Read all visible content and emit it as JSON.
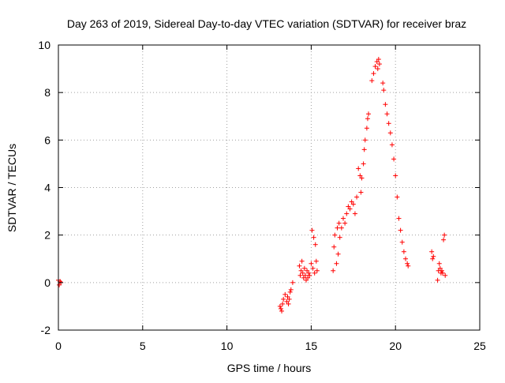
{
  "chart_data": {
    "type": "scatter",
    "title": "Day 263 of 2019, Sidereal Day-to-day VTEC variation (SDTVAR) for receiver braz",
    "xlabel": "GPS time / hours",
    "ylabel": "SDTVAR / TECUs",
    "xlim": [
      0,
      25
    ],
    "ylim": [
      -2,
      10
    ],
    "xticks": [
      0,
      5,
      10,
      15,
      20,
      25
    ],
    "yticks": [
      -2,
      0,
      2,
      4,
      6,
      8,
      10
    ],
    "xtick_labels": [
      "0",
      "5",
      "10",
      "15",
      "20",
      "25"
    ],
    "ytick_labels": [
      "-2",
      "0",
      "2",
      "4",
      "6",
      "8",
      "10"
    ],
    "grid": true,
    "marker": "+",
    "color": "#ff0000",
    "series": [
      {
        "name": "SDTVAR",
        "x": [
          0.0,
          0.05,
          0.1,
          0.15,
          13.15,
          13.2,
          13.25,
          13.3,
          13.35,
          13.45,
          13.55,
          13.6,
          13.65,
          13.7,
          13.75,
          13.8,
          13.9,
          14.3,
          14.35,
          14.4,
          14.45,
          14.5,
          14.55,
          14.6,
          14.65,
          14.7,
          14.75,
          14.8,
          14.85,
          14.9,
          15.0,
          15.05,
          15.1,
          15.15,
          15.2,
          15.25,
          15.3,
          15.35,
          16.3,
          16.35,
          16.4,
          16.5,
          16.55,
          16.6,
          16.65,
          16.7,
          16.8,
          16.9,
          17.0,
          17.1,
          17.2,
          17.3,
          17.4,
          17.5,
          17.6,
          17.7,
          17.8,
          17.9,
          17.95,
          18.0,
          18.1,
          18.15,
          18.2,
          18.3,
          18.35,
          18.4,
          18.6,
          18.7,
          18.8,
          18.9,
          18.95,
          19.0,
          19.05,
          19.25,
          19.3,
          19.4,
          19.5,
          19.6,
          19.7,
          19.8,
          19.9,
          20.0,
          20.1,
          20.2,
          20.3,
          20.4,
          20.5,
          20.6,
          20.7,
          20.75,
          22.15,
          22.2,
          22.25,
          22.5,
          22.55,
          22.6,
          22.65,
          22.7,
          22.75,
          22.8,
          22.85,
          22.9,
          22.95
        ],
        "y": [
          0.1,
          -0.1,
          0.05,
          0.0,
          -1.0,
          -1.1,
          -1.2,
          -0.9,
          -0.7,
          -0.5,
          -0.8,
          -0.6,
          -0.9,
          -0.7,
          -0.4,
          -0.3,
          0.0,
          0.7,
          0.3,
          0.5,
          0.9,
          0.4,
          0.2,
          0.6,
          0.3,
          0.1,
          0.5,
          0.2,
          0.4,
          0.3,
          0.8,
          2.2,
          0.6,
          1.9,
          0.4,
          1.6,
          0.9,
          0.5,
          0.5,
          1.5,
          2.0,
          0.8,
          2.3,
          1.2,
          2.5,
          1.9,
          2.3,
          2.7,
          2.5,
          2.9,
          3.2,
          3.1,
          3.4,
          3.3,
          2.9,
          3.6,
          4.8,
          4.5,
          3.8,
          4.4,
          5.0,
          5.6,
          6.0,
          6.5,
          6.9,
          7.1,
          8.5,
          8.8,
          9.1,
          9.3,
          9.0,
          9.4,
          9.2,
          8.4,
          8.1,
          7.5,
          7.1,
          6.7,
          6.3,
          5.8,
          5.2,
          4.5,
          3.6,
          2.7,
          2.2,
          1.7,
          1.3,
          1.0,
          0.8,
          0.7,
          1.3,
          1.0,
          1.1,
          0.1,
          0.5,
          0.8,
          0.6,
          0.4,
          0.5,
          0.4,
          1.8,
          2.0,
          0.3
        ]
      }
    ]
  }
}
